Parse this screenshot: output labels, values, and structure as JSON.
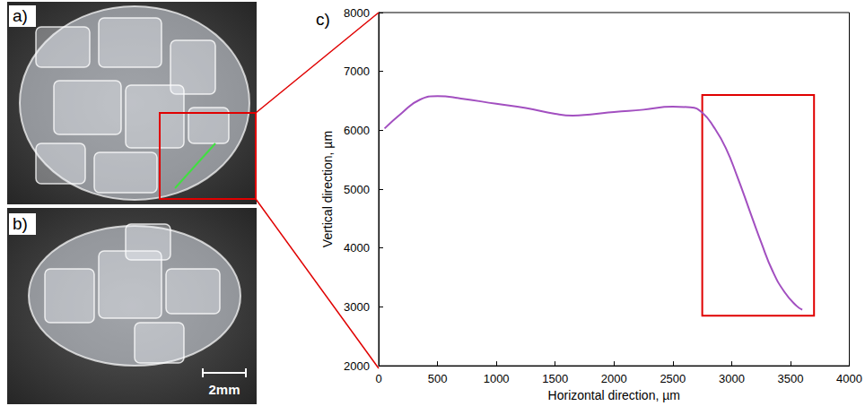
{
  "figure": {
    "panel_labels": [
      "a)",
      "b)",
      "c)"
    ],
    "scale_bar": "2mm"
  },
  "chart_data": {
    "type": "line",
    "x_label": "Horizontal direction, µm",
    "y_label": "Vertical direction, µm",
    "x": [
      50,
      200,
      350,
      500,
      700,
      1000,
      1250,
      1500,
      1650,
      1800,
      2000,
      2250,
      2500,
      2650,
      2750,
      2850,
      2950,
      3050,
      3150,
      3250,
      3350,
      3450,
      3550,
      3600
    ],
    "values": [
      6030,
      6300,
      6520,
      6580,
      6540,
      6450,
      6380,
      6280,
      6250,
      6270,
      6310,
      6350,
      6400,
      6390,
      6300,
      6050,
      5700,
      5200,
      4650,
      4100,
      3600,
      3250,
      3020,
      2950
    ],
    "color": "#a24fc0",
    "line_style": "solid",
    "marker": "none",
    "xlim": [
      0,
      4000
    ],
    "xticks": [
      0,
      500,
      1000,
      1500,
      2000,
      2500,
      3000,
      3500,
      4000
    ],
    "ylim": [
      2000,
      8000
    ],
    "yticks": [
      2000,
      3000,
      4000,
      5000,
      6000,
      7000,
      8000
    ],
    "grid": false,
    "highlight_box": {
      "x": [
        2750,
        3700
      ],
      "y": [
        2850,
        6600
      ],
      "color": "#e00000"
    }
  }
}
